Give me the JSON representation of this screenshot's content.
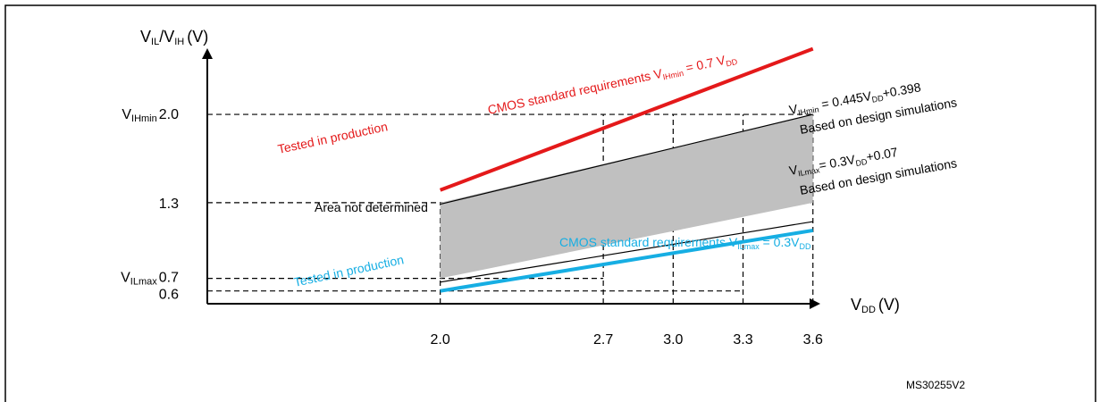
{
  "chart_data": {
    "type": "line",
    "title": "",
    "xlabel": {
      "main": "V",
      "sub": "DD",
      "unit": "(V)"
    },
    "ylabel": {
      "a": "V",
      "a_sub": "IL",
      "sep": "/V",
      "b_sub": "IH",
      "unit": "(V)"
    },
    "xlim": [
      1.0,
      4.0
    ],
    "ylim": [
      0.0,
      2.5
    ],
    "x_ticks": [
      {
        "value": 2.0,
        "label": "2.0"
      },
      {
        "value": 2.7,
        "label": "2.7"
      },
      {
        "value": 3.0,
        "label": "3.0"
      },
      {
        "value": 3.3,
        "label": "3.3"
      },
      {
        "value": 3.6,
        "label": "3.6"
      }
    ],
    "y_ticks": [
      {
        "value": 2.0,
        "prefix": "V",
        "sub": "IHmin",
        "label": "2.0"
      },
      {
        "value": 1.3,
        "prefix": "",
        "sub": "",
        "label": "1.3"
      },
      {
        "value": 0.7,
        "prefix": "V",
        "sub": "ILmax",
        "label": "0.7"
      },
      {
        "value": 0.6,
        "prefix": "",
        "sub": "",
        "label": "0.6"
      }
    ],
    "series": [
      {
        "key": "vih_tested",
        "x": [
          2.0,
          3.6
        ],
        "y": [
          1.4,
          2.52
        ],
        "color": "#e4191a"
      },
      {
        "key": "vil_tested",
        "x": [
          2.0,
          3.6
        ],
        "y": [
          0.6,
          1.08
        ],
        "color": "#16aee3"
      },
      {
        "key": "vih_sim",
        "x": [
          2.0,
          3.6
        ],
        "y": [
          1.288,
          2.0
        ],
        "color": "#000000"
      },
      {
        "key": "vil_sim",
        "x": [
          2.0,
          3.6
        ],
        "y": [
          0.67,
          1.15
        ],
        "color": "#000000"
      }
    ],
    "area": {
      "label": "Area not determined",
      "x": [
        2.0,
        3.6
      ],
      "upper": [
        1.3,
        2.0
      ],
      "lower": [
        0.7,
        1.3
      ],
      "color": "#c0c0c0"
    },
    "annotations": {
      "cmos_vih": {
        "text": "CMOS standard requirements V",
        "sub": "IHmin",
        "rest": " = 0.7 V",
        "sub2": "DD"
      },
      "tested_vih": "Tested in production",
      "vih_formula": {
        "a": "V",
        "a_sub": "IHmin",
        "b": " = 0.445V",
        "b_sub": "DD",
        "c": "+0.398"
      },
      "vih_sim_note": "Based on design simulations",
      "vil_formula": {
        "a": "V",
        "a_sub": "ILmax",
        "b": "= 0.3V",
        "b_sub": "DD",
        "c": "+0.07"
      },
      "vil_sim_note": "Based on design simulations",
      "cmos_vil": {
        "text": "CMOS standard  requirements V",
        "sub": "ILmax",
        "rest": " = 0.3V",
        "sub2": "DD"
      },
      "tested_vil": "Tested in production"
    },
    "reference": "MS30255V2"
  }
}
